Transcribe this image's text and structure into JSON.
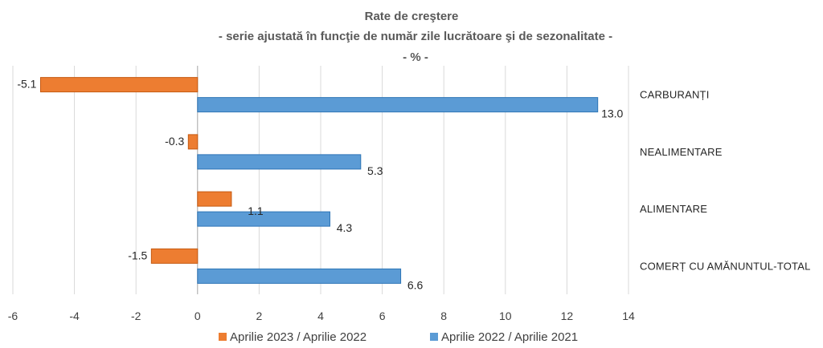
{
  "chart_data": {
    "type": "bar",
    "orientation": "horizontal",
    "title": "Rate de creştere",
    "subtitle": "- serie ajustată în funcţie de număr zile lucrătoare şi de sezonalitate -",
    "unit_line": "- % -",
    "categories": [
      "COMERȚ CU AMĂNUNTUL-TOTAL",
      "ALIMENTARE",
      "NEALIMENTARE",
      "CARBURANȚI"
    ],
    "series": [
      {
        "name": "Aprilie 2023 / Aprilie 2022",
        "color": "#ED7D31",
        "values": [
          -1.5,
          1.1,
          -0.3,
          -5.1
        ],
        "labels": [
          "-1.5",
          "1.1",
          "-0.3",
          "-5.1"
        ]
      },
      {
        "name": "Aprilie 2022 / Aprilie 2021",
        "color": "#5B9BD5",
        "values": [
          6.6,
          4.3,
          5.3,
          13.0
        ],
        "labels": [
          "6.6",
          "4.3",
          "5.3",
          "13.0"
        ]
      }
    ],
    "xlim": [
      -6,
      14
    ],
    "xticks": [
      "-6",
      "-4",
      "-2",
      "0",
      "2",
      "4",
      "6",
      "8",
      "10",
      "12",
      "14"
    ],
    "grid": "vertical",
    "legend": "bottom"
  }
}
